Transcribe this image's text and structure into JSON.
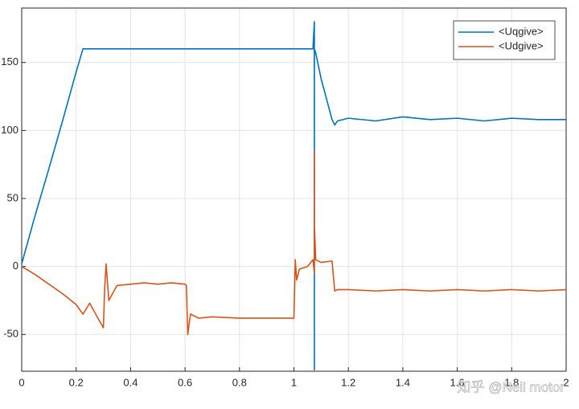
{
  "chart_data": {
    "type": "line",
    "x": [
      0,
      0.05,
      0.1,
      0.15,
      0.2,
      0.225,
      0.25,
      0.28,
      0.3,
      0.305,
      0.31,
      0.32,
      0.35,
      0.4,
      0.45,
      0.5,
      0.55,
      0.6,
      0.605,
      0.61,
      0.62,
      0.65,
      0.7,
      0.8,
      0.9,
      1.0,
      1.005,
      1.01,
      1.02,
      1.05,
      1.07,
      1.075,
      1.0751,
      1.0752,
      1.08,
      1.1,
      1.14,
      1.15,
      1.16,
      1.2,
      1.3,
      1.4,
      1.5,
      1.6,
      1.7,
      1.8,
      1.9,
      2.0
    ],
    "series": [
      {
        "name": "<Uqgive>",
        "color": "#0072bd",
        "values": [
          2,
          38,
          72,
          107,
          143,
          160,
          160,
          160,
          160,
          160,
          160,
          160,
          160,
          160,
          160,
          160,
          160,
          160,
          160,
          160,
          160,
          160,
          160,
          160,
          160,
          160,
          160,
          160,
          160,
          160,
          160,
          180,
          -76,
          160,
          157,
          138,
          108,
          104,
          107,
          109,
          107,
          110,
          108,
          109,
          107,
          109,
          108,
          108
        ]
      },
      {
        "name": "<Udgive>",
        "color": "#d95319",
        "values": [
          0,
          -6,
          -13,
          -20,
          -28,
          -35,
          -27,
          -38,
          -45,
          -15,
          2,
          -25,
          -14,
          -13,
          -12,
          -13,
          -12,
          -13,
          -14,
          -50,
          -35,
          -38,
          -37,
          -38,
          -38,
          -38,
          5,
          -10,
          -2,
          0,
          5,
          -5,
          85,
          30,
          5,
          3,
          4,
          -18,
          -17,
          -17,
          -18,
          -17,
          -18,
          -17,
          -18,
          -17,
          -18,
          -17
        ]
      }
    ],
    "xlim": [
      0,
      2
    ],
    "xticks": [
      0,
      0.2,
      0.4,
      0.6,
      0.8,
      1,
      1.2,
      1.4,
      1.6,
      1.8,
      2
    ],
    "ylim": [
      -77,
      190
    ],
    "yticks": [
      -50,
      0,
      50,
      100,
      150
    ],
    "grid": true,
    "legend": "upper right",
    "watermark": "知乎 @Neil motor"
  }
}
